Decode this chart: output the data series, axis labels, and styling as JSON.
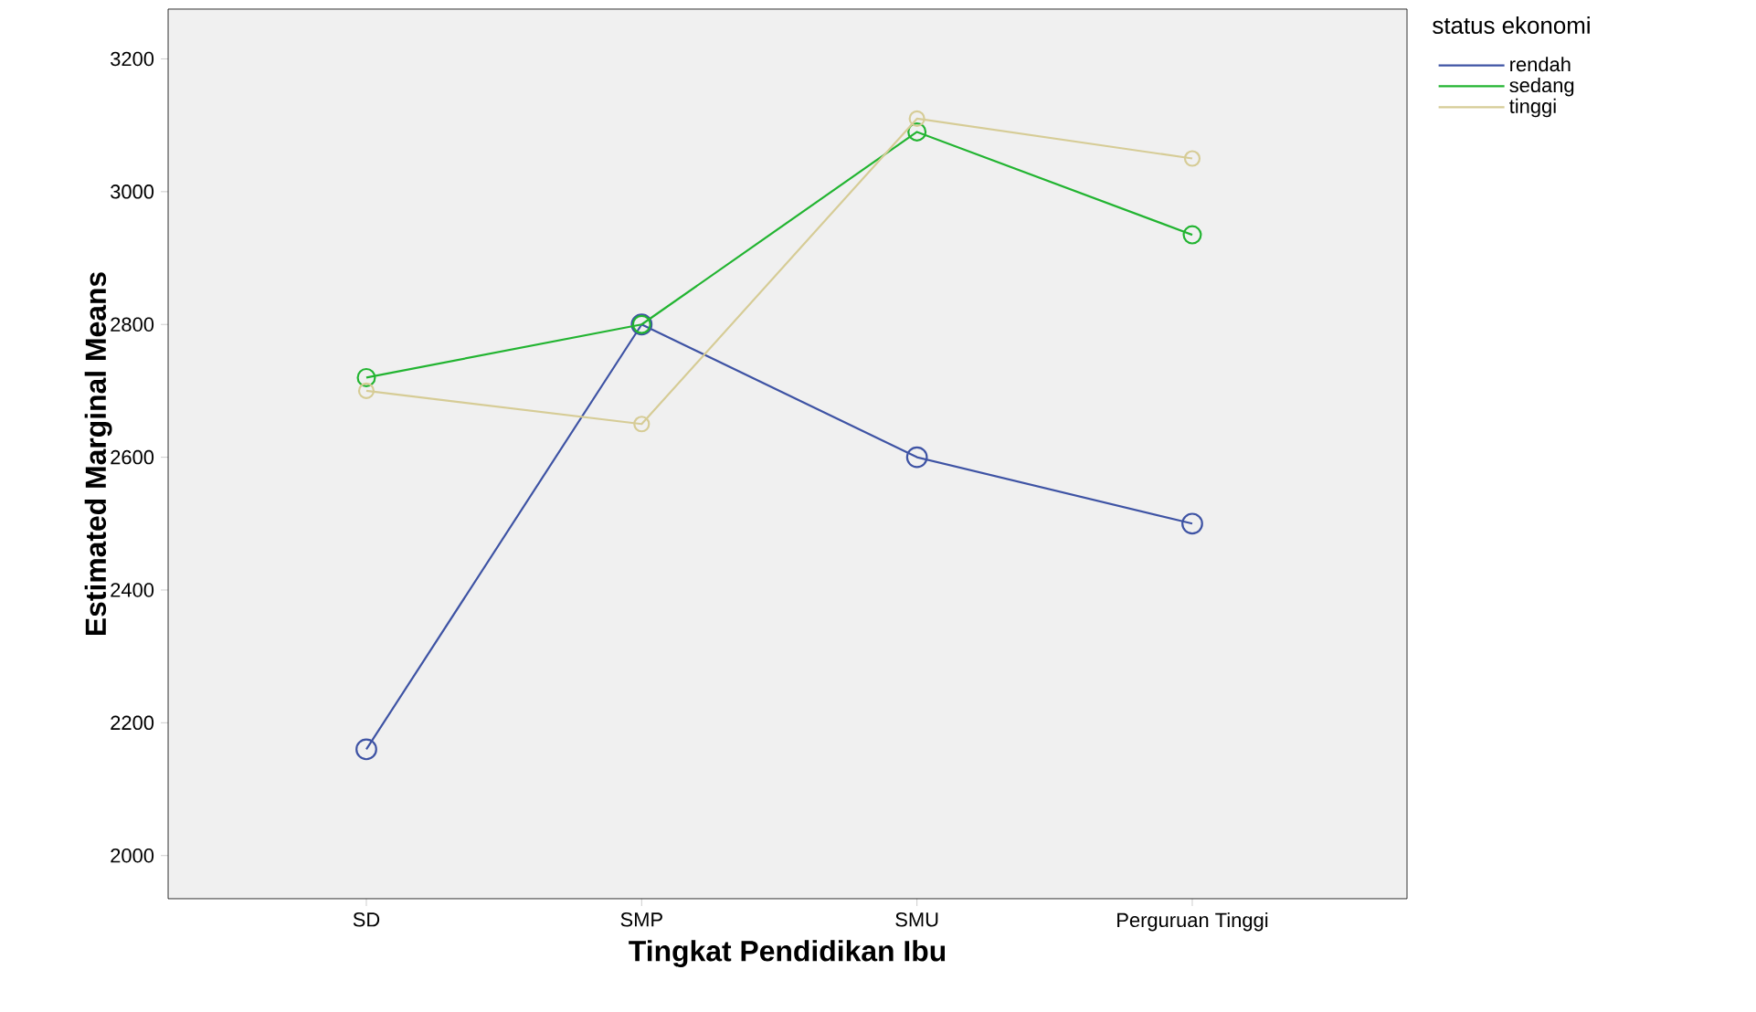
{
  "chart_data": {
    "type": "line",
    "xlabel": "Tingkat Pendidikan Ibu",
    "ylabel": "Estimated Marginal Means",
    "legend_title": "status ekonomi",
    "legend": "top right",
    "marker": "circle",
    "line_style": "solid",
    "grid": false,
    "categories": [
      "SD",
      "SMP",
      "SMU",
      "Perguruan Tinggi"
    ],
    "ylim": [
      1935,
      3275
    ],
    "yticks": [
      2000,
      2200,
      2400,
      2600,
      2800,
      3000,
      3200
    ],
    "series": [
      {
        "name": "rendah",
        "color": "#3e53a4",
        "values": [
          2160,
          2800,
          2600,
          2500
        ]
      },
      {
        "name": "sedang",
        "color": "#22b431",
        "values": [
          2720,
          2800,
          3090,
          2935
        ]
      },
      {
        "name": "tinggi",
        "color": "#d6cc96",
        "values": [
          2700,
          2650,
          3110,
          3050
        ]
      }
    ]
  }
}
